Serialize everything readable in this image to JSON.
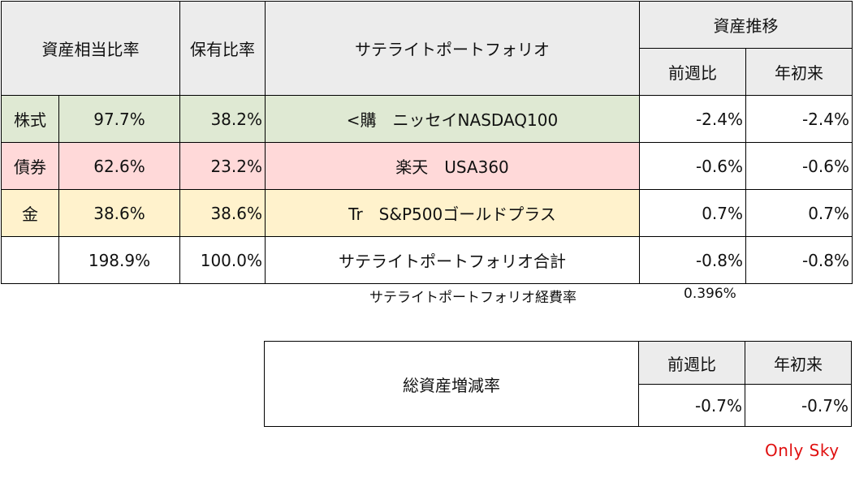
{
  "colors": {
    "stock": "#dfe9d3",
    "bond": "#ffd9d9",
    "gold": "#fff2cc",
    "header": "#ececec",
    "brand": "#e01010"
  },
  "headers": {
    "asset_ratio": "資産相当比率",
    "holding_ratio": "保有比率",
    "satellite": "サテライトポートフォリオ",
    "transition": "資産推移",
    "week": "前週比",
    "ytd": "年初来"
  },
  "rows": [
    {
      "category": "株式",
      "asset_ratio": "97.7%",
      "holding_ratio": "38.2%",
      "fund": "<購　ニッセイNASDAQ100",
      "week": "-2.4%",
      "ytd": "-2.4%"
    },
    {
      "category": "債券",
      "asset_ratio": "62.6%",
      "holding_ratio": "23.2%",
      "fund": "楽天　USA360",
      "week": "-0.6%",
      "ytd": "-0.6%"
    },
    {
      "category": "金",
      "asset_ratio": "38.6%",
      "holding_ratio": "38.6%",
      "fund": "Tr　S&P500ゴールドプラス",
      "week": "0.7%",
      "ytd": "0.7%"
    },
    {
      "category": "",
      "asset_ratio": "198.9%",
      "holding_ratio": "100.0%",
      "fund": "サテライトポートフォリオ合計",
      "week": "-0.8%",
      "ytd": "-0.8%"
    }
  ],
  "fee": {
    "label": "サテライトポートフォリオ経費率",
    "value": "0.396%"
  },
  "total": {
    "label": "総資産増減率",
    "week_header": "前週比",
    "ytd_header": "年初来",
    "week": "-0.7%",
    "ytd": "-0.7%"
  },
  "brand": "Only Sky"
}
